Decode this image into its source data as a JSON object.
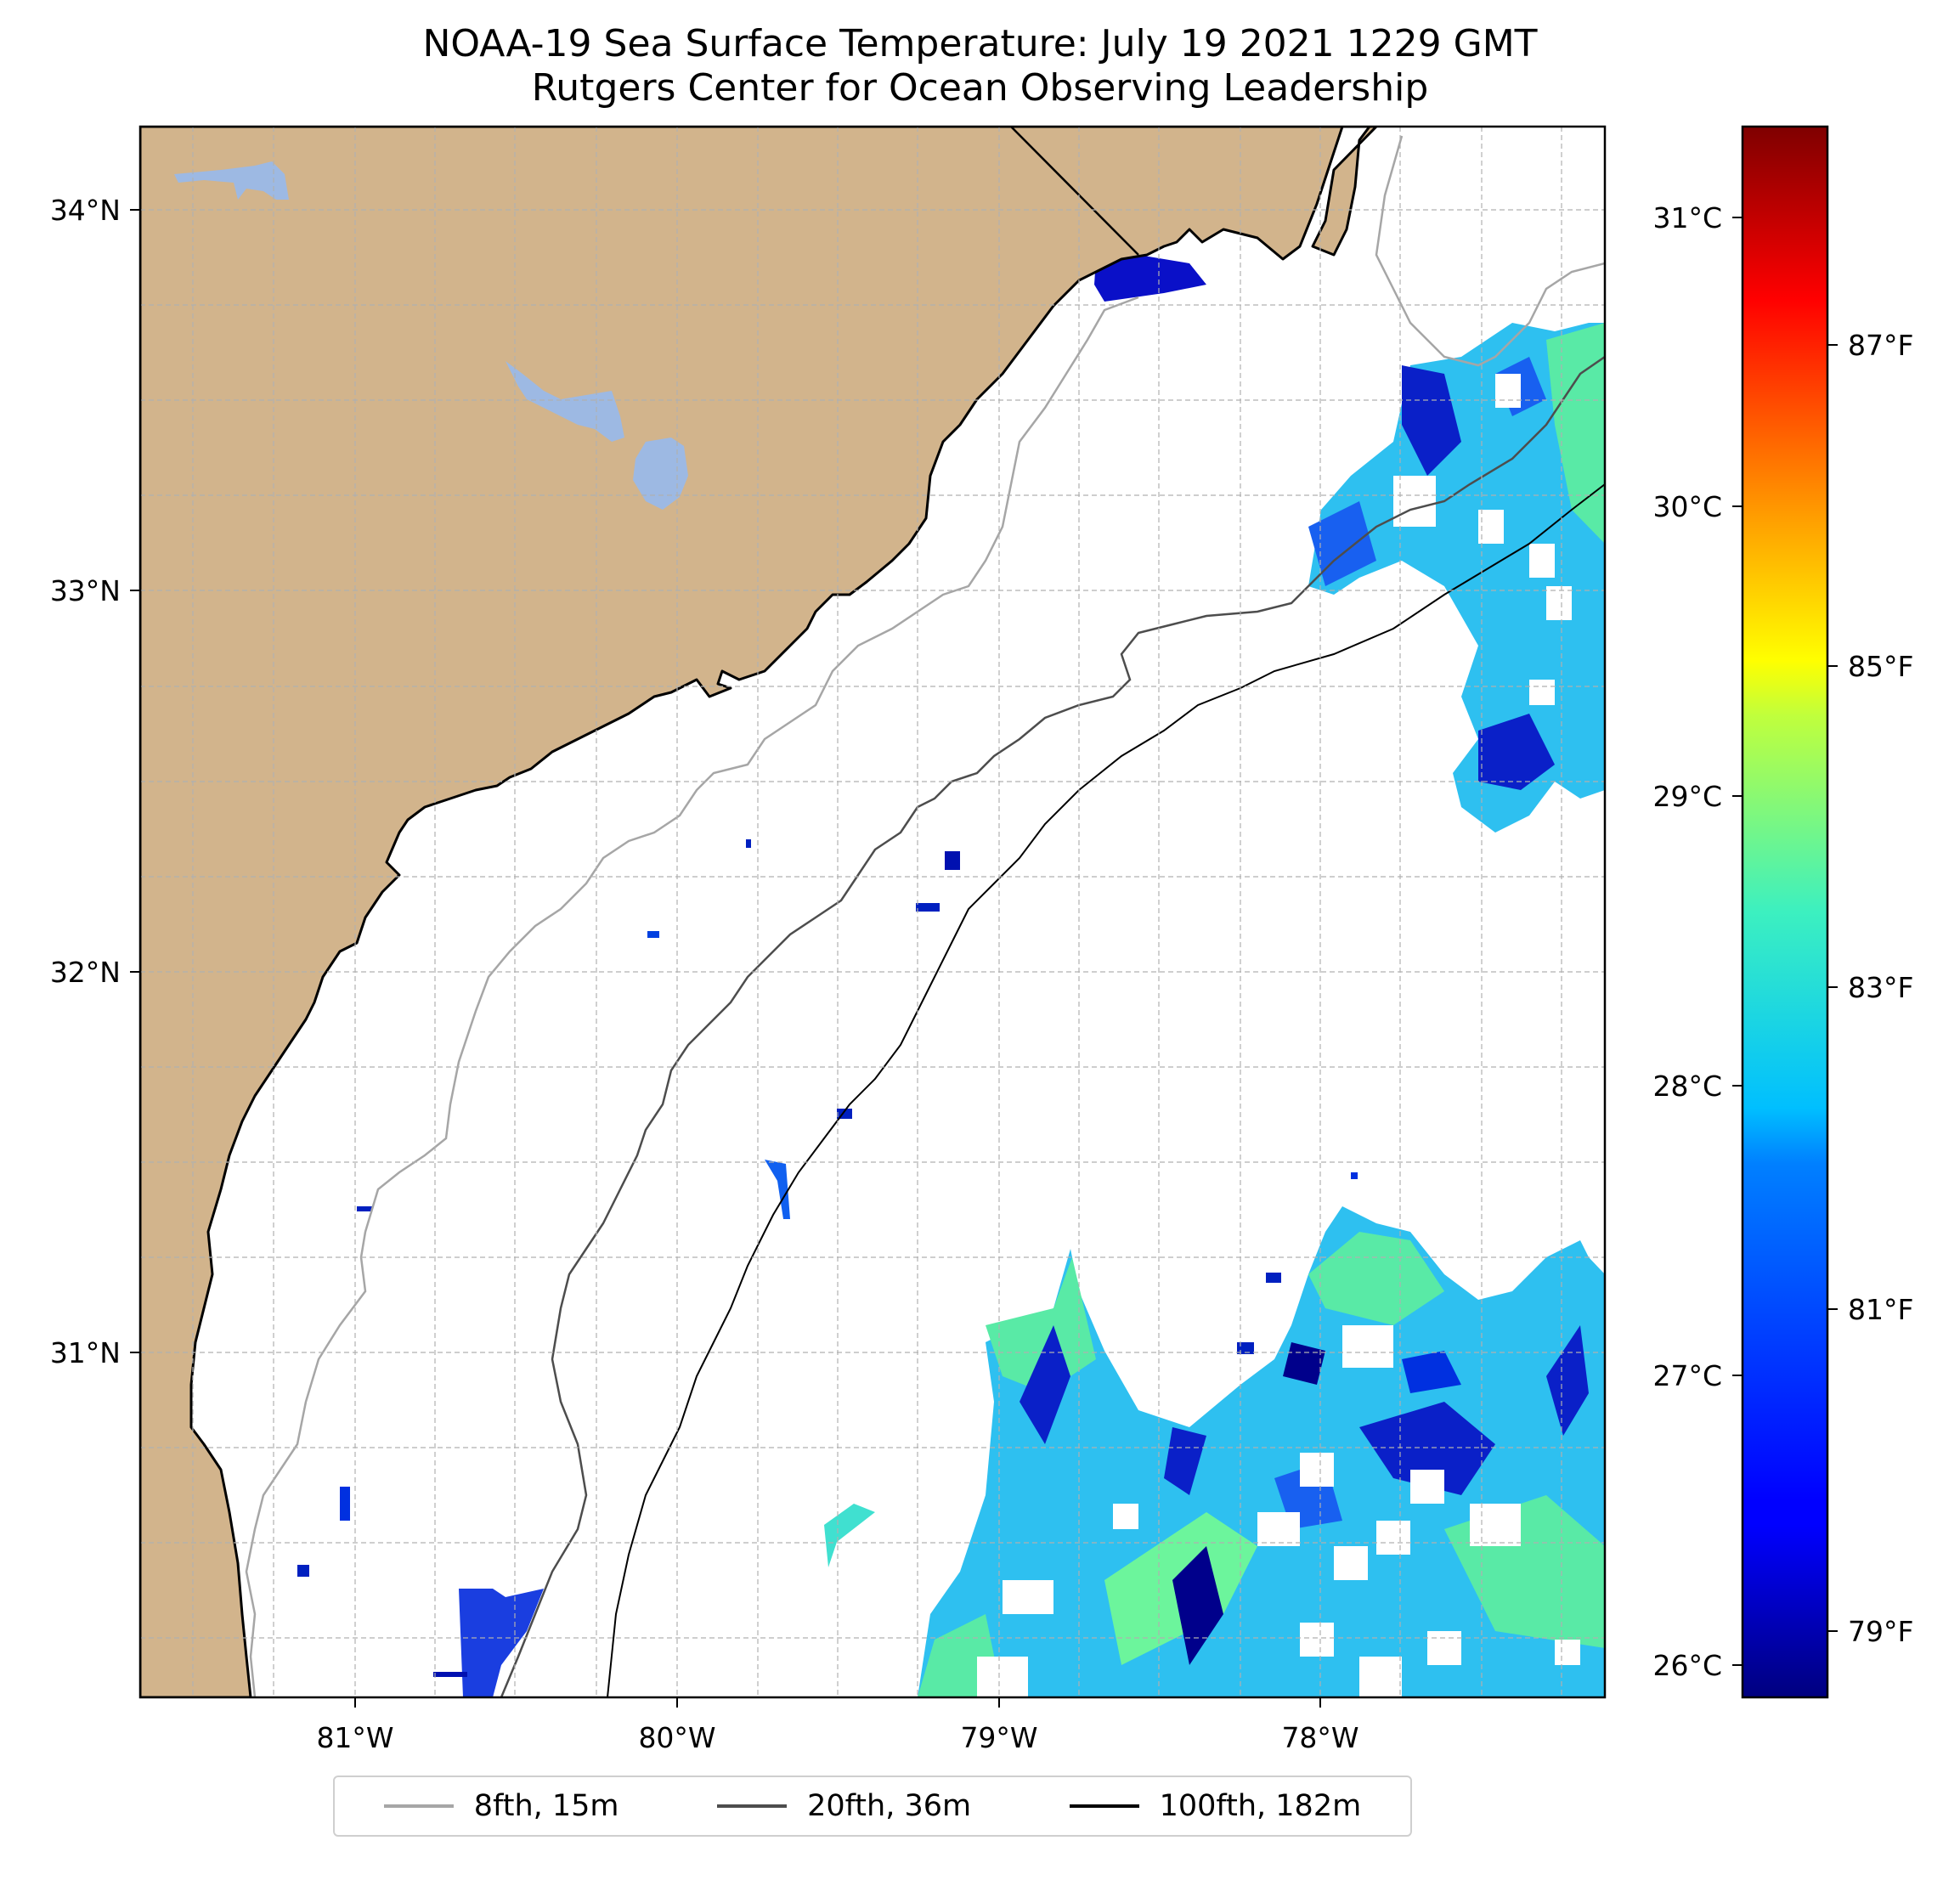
{
  "title": {
    "line1": "NOAA-19 Sea Surface Temperature: July 19 2021 1229 GMT",
    "line2": "Rutgers Center for Ocean Observing Leadership"
  },
  "axes": {
    "lon_ticks": [
      {
        "value": -81,
        "label": "81°W"
      },
      {
        "value": -80,
        "label": "80°W"
      },
      {
        "value": -79,
        "label": "79°W"
      },
      {
        "value": -78,
        "label": "78°W"
      }
    ],
    "lat_ticks": [
      {
        "value": 34,
        "label": "34°N"
      },
      {
        "value": 33,
        "label": "33°N"
      },
      {
        "value": 32,
        "label": "32°N"
      },
      {
        "value": 31,
        "label": "31°N"
      }
    ],
    "lon_range": [
      -81.67,
      -77.12
    ],
    "lat_range": [
      30.07,
      34.22
    ],
    "grid": true
  },
  "colorbar": {
    "colormap": "jet",
    "range_c": [
      25.87,
      31.28
    ],
    "celsius_ticks": [
      {
        "value": 26,
        "label": "26°C"
      },
      {
        "value": 27,
        "label": "27°C"
      },
      {
        "value": 28,
        "label": "28°C"
      },
      {
        "value": 29,
        "label": "29°C"
      },
      {
        "value": 30,
        "label": "30°C"
      },
      {
        "value": 31,
        "label": "31°C"
      }
    ],
    "fahrenheit_ticks": [
      {
        "value": 79,
        "label": "79°F"
      },
      {
        "value": 81,
        "label": "81°F"
      },
      {
        "value": 83,
        "label": "83°F"
      },
      {
        "value": 85,
        "label": "85°F"
      },
      {
        "value": 87,
        "label": "87°F"
      }
    ]
  },
  "legend": {
    "items": [
      {
        "label": "8fth, 15m",
        "color": "#a6a6a6"
      },
      {
        "label": "20fth, 36m",
        "color": "#4d4d4d"
      },
      {
        "label": "100fth, 182m",
        "color": "#000000"
      }
    ]
  },
  "colors": {
    "land": "#d2b48c",
    "lakes": "#9db9e3",
    "ocean": "#ffffff",
    "coastline": "#000000"
  }
}
